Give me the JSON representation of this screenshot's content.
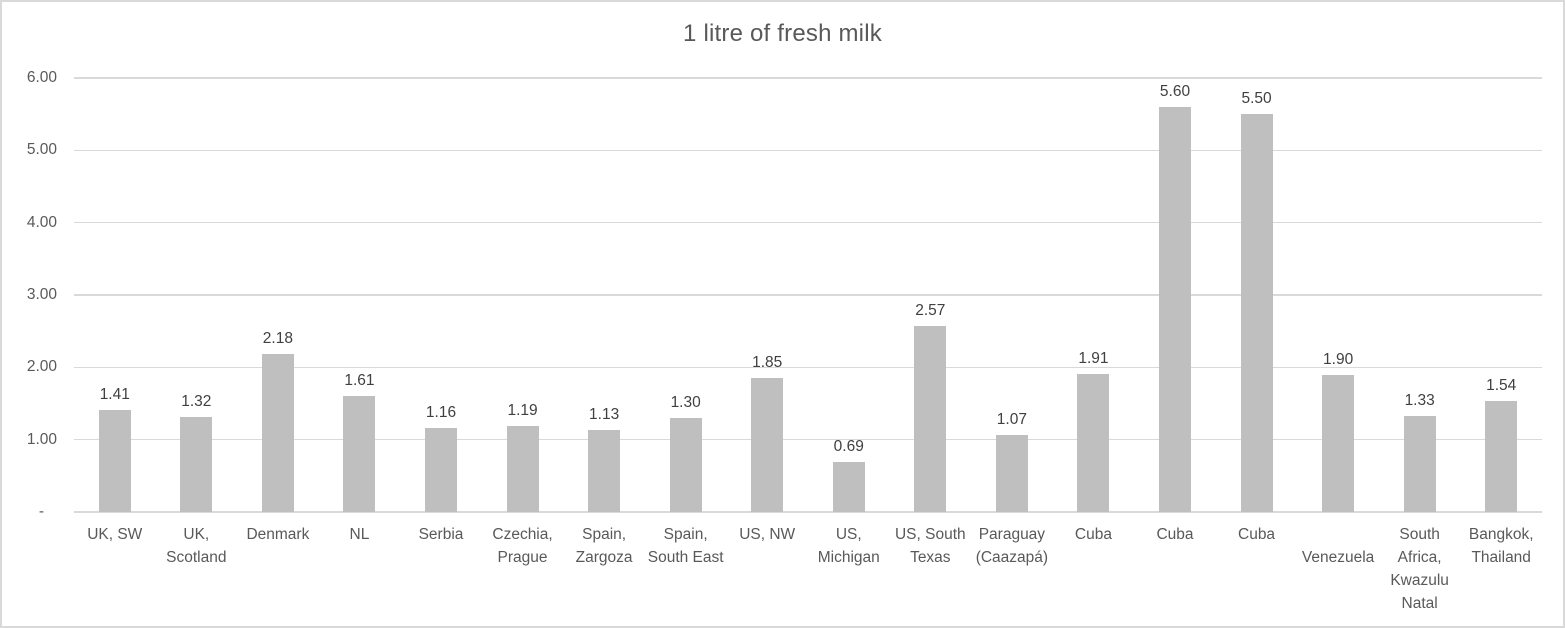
{
  "colors": {
    "bar": "#bfbfbf",
    "grid": "#d9d9d9",
    "border": "#d9d9d9",
    "text": "#595959",
    "value_label": "#404040",
    "title": "#595959"
  },
  "chart_data": {
    "type": "bar",
    "title": "1 litre of fresh milk",
    "categories": [
      "UK, SW",
      "UK, Scotland",
      "Denmark",
      "NL",
      "Serbia",
      "Czechia, Prague",
      "Spain, Zargoza",
      "Spain, South East",
      "US, NW",
      "US, Michigan",
      "US, South Texas",
      "Paraguay (Caazapá)",
      "Cuba",
      "Cuba",
      "Cuba",
      "Venezuela",
      "South Africa, Kwazulu Natal",
      "Bangkok, Thailand"
    ],
    "categories_display": [
      "UK, SW",
      "UK,\nScotland",
      "Denmark",
      "NL",
      "Serbia",
      "Czechia,\nPrague",
      "Spain,\nZargoza",
      "Spain,\nSouth East",
      "US, NW",
      "US,\nMichigan",
      "US, South\nTexas",
      "Paraguay\n(Caazapá)",
      "Cuba",
      "Cuba",
      "Cuba",
      "\nVenezuela",
      "South\nAfrica,\nKwazulu\nNatal",
      "Bangkok,\nThailand"
    ],
    "values": [
      1.41,
      1.32,
      2.18,
      1.61,
      1.16,
      1.19,
      1.13,
      1.3,
      1.85,
      0.69,
      2.57,
      1.07,
      1.91,
      5.6,
      5.5,
      1.9,
      1.33,
      1.54
    ],
    "data_labels": true,
    "ylim": [
      0,
      6
    ],
    "yticks": [
      {
        "value": 6,
        "label": "6.00"
      },
      {
        "value": 5,
        "label": "5.00"
      },
      {
        "value": 4,
        "label": "4.00"
      },
      {
        "value": 3,
        "label": "3.00"
      },
      {
        "value": 2,
        "label": "2.00"
      },
      {
        "value": 1,
        "label": "1.00"
      },
      {
        "value": 0,
        "label": "-"
      }
    ],
    "grid": "horizontal",
    "legend": "none",
    "xlabel": "",
    "ylabel": ""
  }
}
